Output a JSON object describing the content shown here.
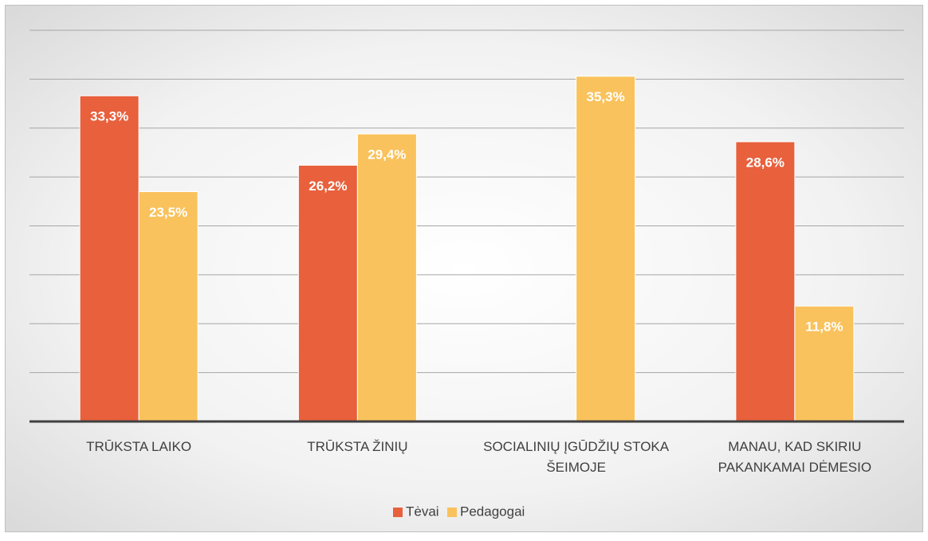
{
  "chart_data": {
    "type": "bar",
    "categories": [
      "TRŪKSTA LAIKO",
      "TRŪKSTA ŽINIŲ",
      "SOCIALINIŲ ĮGŪDŽIŲ STOKA ŠEIMOJE",
      "MANAU, KAD SKIRIU PAKANKAMAI DĖMESIO"
    ],
    "series": [
      {
        "name": "Tėvai",
        "color": "#e8603c",
        "values": [
          33.3,
          26.2,
          null,
          28.6
        ],
        "value_labels": [
          "33,3%",
          "26,2%",
          null,
          "28,6%"
        ]
      },
      {
        "name": "Pedagogai",
        "color": "#f9c25c",
        "values": [
          23.5,
          29.4,
          35.3,
          11.8
        ],
        "value_labels": [
          "23,5%",
          "29,4%",
          "35,3%",
          "11,8%"
        ]
      }
    ],
    "ylim": [
      0,
      40
    ],
    "gridlines": [
      5,
      10,
      15,
      20,
      25,
      30,
      35,
      40
    ],
    "grid": true,
    "legend": "bottom"
  }
}
